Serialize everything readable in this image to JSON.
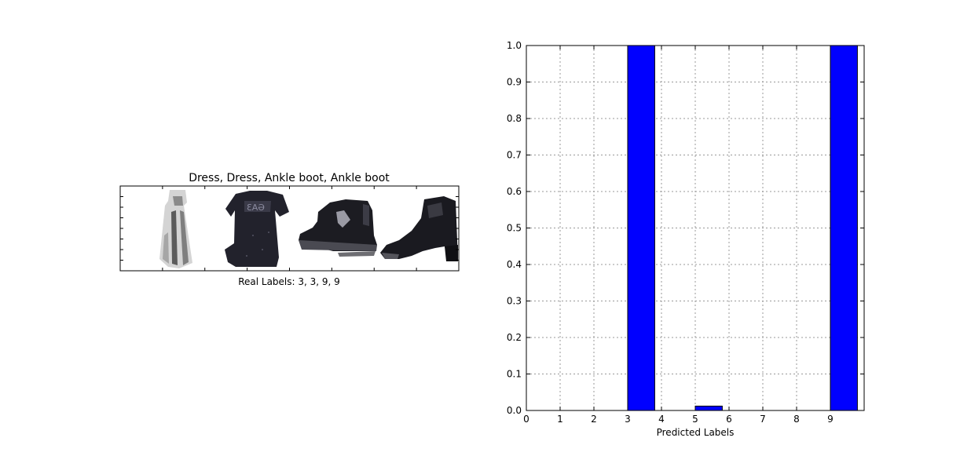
{
  "images_panel": {
    "title": "Dress, Dress, Ankle boot, Ankle boot",
    "xlabel": "Real Labels: 3, 3, 9, 9",
    "items": [
      {
        "item": "dress",
        "label": 3
      },
      {
        "item": "t-shirt-dress",
        "label": 3
      },
      {
        "item": "ankle-boot",
        "label": 9
      },
      {
        "item": "heeled-boot",
        "label": 9
      }
    ]
  },
  "chart_data": {
    "type": "bar",
    "xlabel": "Predicted Labels",
    "ylabel": "",
    "x": [
      0,
      1,
      2,
      3,
      4,
      5,
      6,
      7,
      8,
      9
    ],
    "values": [
      0.0,
      0.0,
      0.0,
      1.0,
      0.0,
      0.012,
      0.0,
      0.0,
      0.0,
      1.0
    ],
    "xlim": [
      0,
      10
    ],
    "ylim": [
      0,
      1.0
    ],
    "xticks": [
      0,
      1,
      2,
      3,
      4,
      5,
      6,
      7,
      8,
      9
    ],
    "yticks": [
      0.0,
      0.1,
      0.2,
      0.3,
      0.4,
      0.5,
      0.6,
      0.7,
      0.8,
      0.9,
      1.0
    ],
    "grid": true,
    "bar_color": "#0000ff"
  }
}
